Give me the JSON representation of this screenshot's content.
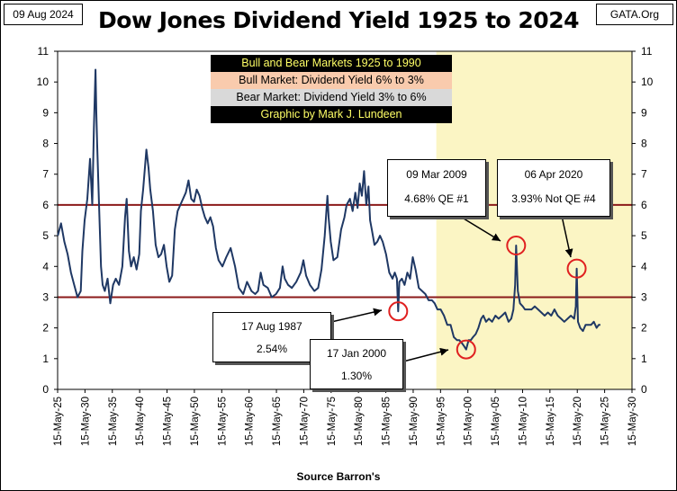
{
  "header": {
    "date": "09 Aug 2024",
    "source": "GATA.Org",
    "title": "Dow Jones Dividend Yield 1925 to 2024"
  },
  "legend": {
    "items": [
      {
        "text": "Bull and Bear Markets 1925 to 1990",
        "bg": "#000000",
        "color": "#ffff66"
      },
      {
        "text": "Bull Market: Dividend Yield 6% to 3%",
        "bg": "#f9cbad",
        "color": "#000000"
      },
      {
        "text": "Bear Market: Dividend Yield 3% to 6%",
        "bg": "#d9d9d9",
        "color": "#000000"
      },
      {
        "text": "Graphic by Mark J. Lundeen",
        "bg": "#000000",
        "color": "#ffff66"
      }
    ]
  },
  "callouts": {
    "c1987": {
      "date": "17 Aug 1987",
      "value": "2.54%"
    },
    "c2000": {
      "date": "17 Jan 2000",
      "value": "1.30%"
    },
    "c2009": {
      "date": "09 Mar 2009",
      "value": "4.68%  QE #1"
    },
    "c2020": {
      "date": "06 Apr 2020",
      "value": "3.93%  Not QE #4"
    }
  },
  "axis": {
    "xlabel": "Source Barron's"
  },
  "colors": {
    "series": "#1f3864",
    "threshold": "#8b1a1a",
    "shade": "#fbf5c4",
    "marker": "#e02020"
  },
  "chart_data": {
    "type": "line",
    "title": "Dow Jones Dividend Yield 1925 to 2024",
    "xlabel": "Source Barron's",
    "ylabel": "",
    "ylim": [
      0,
      11
    ],
    "xlim": [
      1925.37,
      2030.37
    ],
    "yticks": [
      "0",
      "1",
      "2",
      "3",
      "4",
      "5",
      "6",
      "7",
      "8",
      "9",
      "10",
      "11"
    ],
    "xticks": [
      "15-May-25",
      "15-May-30",
      "15-May-35",
      "15-May-40",
      "15-May-45",
      "15-May-50",
      "15-May-55",
      "15-May-60",
      "15-May-65",
      "15-May-70",
      "15-May-75",
      "15-May-80",
      "15-May-85",
      "15-May-90",
      "15-May-95",
      "15-May-00",
      "15-May-05",
      "15-May-10",
      "15-May-15",
      "15-May-20",
      "15-May-25",
      "15-May-30"
    ],
    "grid": false,
    "shaded_from": 1994.6,
    "reference_lines": [
      3,
      6
    ],
    "series": [
      {
        "x": [
          1925.4,
          1926.0,
          1926.6,
          1927.2,
          1927.8,
          1928.4,
          1929.0,
          1929.6,
          1929.9,
          1930.3,
          1930.8,
          1931.3,
          1931.7,
          1932.0,
          1932.3,
          1932.45,
          1932.6,
          1932.9,
          1933.3,
          1933.6,
          1934.0,
          1934.5,
          1935.0,
          1935.5,
          1936.0,
          1936.6,
          1937.2,
          1937.7,
          1938.0,
          1938.4,
          1938.8,
          1939.3,
          1939.8,
          1940.3,
          1940.6,
          1941.0,
          1941.6,
          1942.0,
          1942.3,
          1942.8,
          1943.3,
          1943.8,
          1944.3,
          1944.8,
          1945.3,
          1945.8,
          1946.3,
          1946.8,
          1947.3,
          1947.8,
          1948.3,
          1948.8,
          1949.3,
          1949.8,
          1950.3,
          1950.8,
          1951.3,
          1951.8,
          1952.3,
          1952.8,
          1953.3,
          1953.8,
          1954.3,
          1954.8,
          1955.5,
          1956.2,
          1957.0,
          1957.8,
          1958.5,
          1959.3,
          1960.0,
          1960.8,
          1961.5,
          1962.0,
          1962.5,
          1963.0,
          1963.8,
          1964.5,
          1965.3,
          1966.0,
          1966.5,
          1966.9,
          1967.5,
          1968.2,
          1969.0,
          1969.8,
          1970.3,
          1970.8,
          1971.5,
          1972.3,
          1973.0,
          1973.6,
          1974.2,
          1974.7,
          1974.9,
          1975.3,
          1975.8,
          1976.5,
          1977.2,
          1977.8,
          1978.2,
          1978.8,
          1979.3,
          1979.8,
          1980.2,
          1980.6,
          1981.0,
          1981.4,
          1981.8,
          1982.2,
          1982.5,
          1982.8,
          1983.3,
          1983.8,
          1984.3,
          1984.8,
          1985.4,
          1986.0,
          1986.6,
          1987.0,
          1987.4,
          1987.63,
          1987.85,
          1988.3,
          1988.8,
          1989.3,
          1989.8,
          1990.3,
          1990.8,
          1991.4,
          1992.0,
          1992.6,
          1993.2,
          1993.8,
          1994.3,
          1994.8,
          1995.4,
          1996.0,
          1996.6,
          1997.2,
          1997.8,
          1998.4,
          1998.8,
          1999.3,
          1999.7,
          2000.05,
          2000.5,
          2000.9,
          2001.3,
          2001.8,
          2002.3,
          2002.8,
          2003.2,
          2003.7,
          2004.2,
          2004.8,
          2005.4,
          2006.0,
          2006.6,
          2007.2,
          2007.8,
          2008.3,
          2008.7,
          2009.0,
          2009.19,
          2009.5,
          2009.9,
          2010.4,
          2010.8,
          2011.4,
          2012.0,
          2012.6,
          2013.2,
          2013.8,
          2014.4,
          2015.0,
          2015.6,
          2016.2,
          2016.8,
          2017.4,
          2018.0,
          2018.6,
          2019.2,
          2019.8,
          2020.1,
          2020.26,
          2020.5,
          2020.9,
          2021.4,
          2021.9,
          2022.4,
          2022.9,
          2023.4,
          2023.9,
          2024.3,
          2024.6
        ],
        "y": [
          5.0,
          5.4,
          4.8,
          4.4,
          3.8,
          3.4,
          3.0,
          3.2,
          4.5,
          5.5,
          6.2,
          7.5,
          6.0,
          8.5,
          10.4,
          9.0,
          8.0,
          6.2,
          4.0,
          3.4,
          3.2,
          3.6,
          2.8,
          3.4,
          3.6,
          3.4,
          4.0,
          5.6,
          6.2,
          4.5,
          4.0,
          4.3,
          3.9,
          4.4,
          5.8,
          6.5,
          7.8,
          7.2,
          6.5,
          5.8,
          4.7,
          4.3,
          4.4,
          4.7,
          4.0,
          3.5,
          3.7,
          5.2,
          5.8,
          6.0,
          6.2,
          6.4,
          6.8,
          6.2,
          6.1,
          6.5,
          6.3,
          5.9,
          5.6,
          5.4,
          5.6,
          5.3,
          4.6,
          4.2,
          4.0,
          4.3,
          4.6,
          4.0,
          3.3,
          3.1,
          3.5,
          3.2,
          3.1,
          3.2,
          3.8,
          3.4,
          3.3,
          3.0,
          3.1,
          3.3,
          4.0,
          3.6,
          3.4,
          3.3,
          3.5,
          3.8,
          4.2,
          3.7,
          3.4,
          3.2,
          3.3,
          3.9,
          5.0,
          6.3,
          5.6,
          4.8,
          4.2,
          4.3,
          5.2,
          5.6,
          6.0,
          6.2,
          5.8,
          6.4,
          5.9,
          6.7,
          6.3,
          7.1,
          6.0,
          6.6,
          5.5,
          5.2,
          4.7,
          4.8,
          5.0,
          4.8,
          4.4,
          3.8,
          3.6,
          3.8,
          3.6,
          2.54,
          3.5,
          3.6,
          3.4,
          3.8,
          3.6,
          4.3,
          3.9,
          3.3,
          3.2,
          3.1,
          2.9,
          2.9,
          2.8,
          2.6,
          2.6,
          2.4,
          2.1,
          2.1,
          1.7,
          1.6,
          1.6,
          1.5,
          1.4,
          1.3,
          1.6,
          1.6,
          1.7,
          1.8,
          2.0,
          2.3,
          2.4,
          2.2,
          2.3,
          2.2,
          2.4,
          2.3,
          2.4,
          2.5,
          2.2,
          2.3,
          2.6,
          3.4,
          4.68,
          3.2,
          2.8,
          2.7,
          2.6,
          2.6,
          2.6,
          2.7,
          2.6,
          2.5,
          2.4,
          2.5,
          2.4,
          2.6,
          2.4,
          2.3,
          2.2,
          2.3,
          2.4,
          2.3,
          2.7,
          3.93,
          2.2,
          2.0,
          1.9,
          2.1,
          2.1,
          2.1,
          2.2,
          2.0,
          2.1,
          2.1
        ]
      }
    ],
    "highlights": [
      {
        "x": 1987.63,
        "y": 2.54,
        "label": "17 Aug 1987"
      },
      {
        "x": 2000.05,
        "y": 1.3,
        "label": "17 Jan 2000"
      },
      {
        "x": 2009.19,
        "y": 4.68,
        "label": "09 Mar 2009"
      },
      {
        "x": 2020.26,
        "y": 3.93,
        "label": "06 Apr 2020"
      }
    ]
  }
}
